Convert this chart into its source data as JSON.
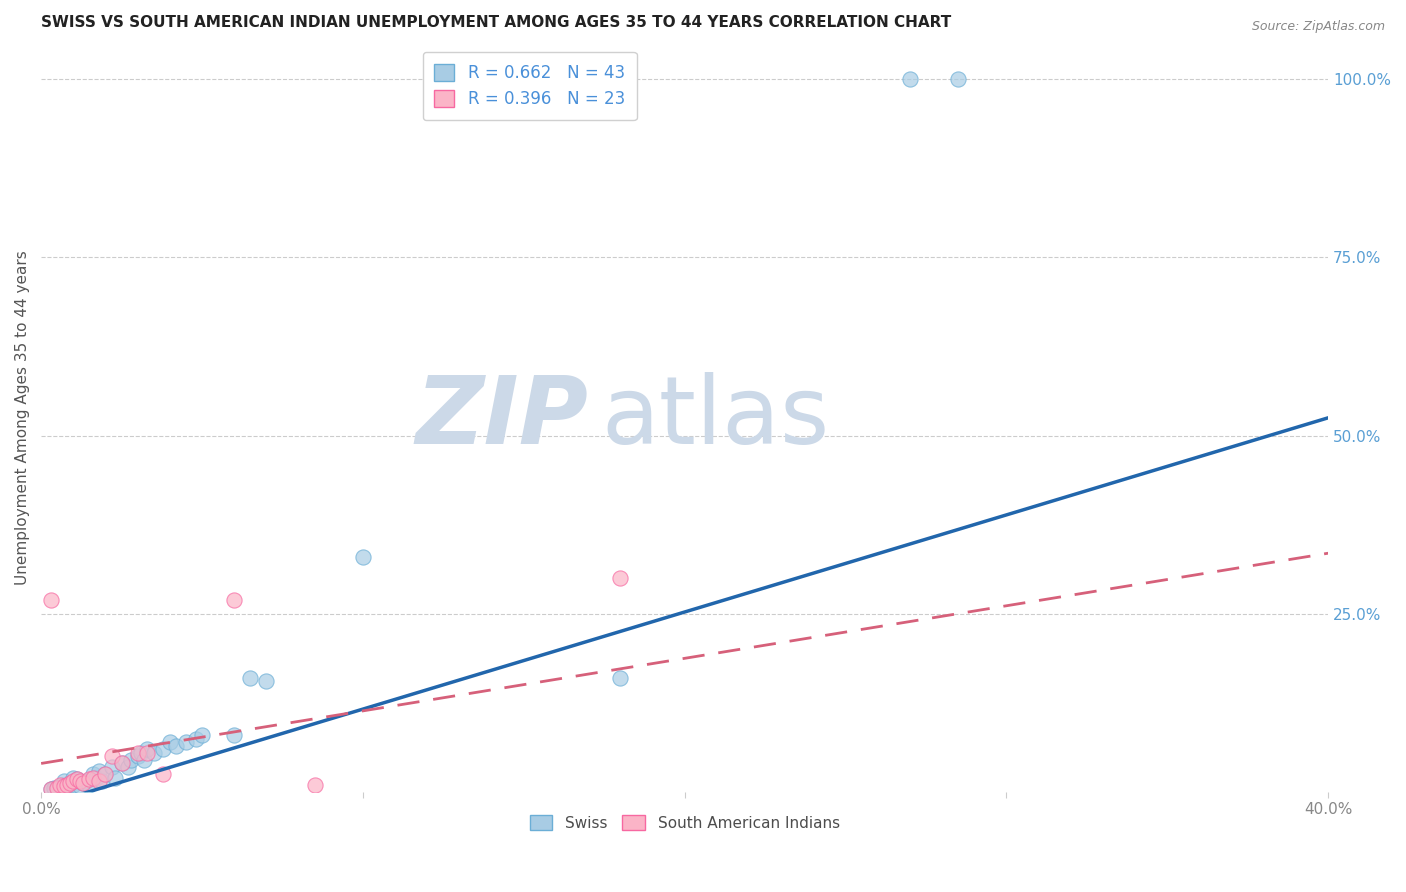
{
  "title": "SWISS VS SOUTH AMERICAN INDIAN UNEMPLOYMENT AMONG AGES 35 TO 44 YEARS CORRELATION CHART",
  "source": "Source: ZipAtlas.com",
  "ylabel": "Unemployment Among Ages 35 to 44 years",
  "xlim": [
    0.0,
    0.4
  ],
  "ylim": [
    0.0,
    1.05
  ],
  "swiss_R": 0.662,
  "swiss_N": 43,
  "sa_indian_R": 0.396,
  "sa_indian_N": 23,
  "swiss_color": "#a8cce4",
  "swiss_edge_color": "#6baed6",
  "sa_indian_color": "#fbb4c7",
  "sa_indian_edge_color": "#f768a1",
  "swiss_line_color": "#2166ac",
  "sa_indian_line_color": "#d6607a",
  "swiss_line_x": [
    0.0,
    0.4
  ],
  "swiss_line_y": [
    -0.02,
    0.525
  ],
  "sa_line_x": [
    0.0,
    0.4
  ],
  "sa_line_y": [
    0.04,
    0.335
  ],
  "watermark_zip": "ZIP",
  "watermark_atlas": "atlas",
  "watermark_color": "#ccd9e8",
  "swiss_scatter_x": [
    0.003,
    0.004,
    0.005,
    0.006,
    0.007,
    0.007,
    0.008,
    0.009,
    0.01,
    0.01,
    0.011,
    0.012,
    0.013,
    0.014,
    0.015,
    0.016,
    0.017,
    0.018,
    0.019,
    0.02,
    0.022,
    0.023,
    0.025,
    0.027,
    0.028,
    0.03,
    0.031,
    0.032,
    0.033,
    0.035,
    0.038,
    0.04,
    0.042,
    0.045,
    0.048,
    0.05,
    0.06,
    0.065,
    0.07,
    0.1,
    0.18,
    0.27,
    0.285
  ],
  "swiss_scatter_y": [
    0.004,
    0.005,
    0.006,
    0.008,
    0.01,
    0.015,
    0.007,
    0.012,
    0.01,
    0.02,
    0.018,
    0.008,
    0.012,
    0.015,
    0.01,
    0.025,
    0.02,
    0.03,
    0.015,
    0.025,
    0.035,
    0.02,
    0.04,
    0.035,
    0.045,
    0.05,
    0.055,
    0.045,
    0.06,
    0.055,
    0.06,
    0.07,
    0.065,
    0.07,
    0.075,
    0.08,
    0.08,
    0.16,
    0.155,
    0.33,
    0.16,
    1.0,
    1.0
  ],
  "sa_indian_scatter_x": [
    0.003,
    0.005,
    0.006,
    0.007,
    0.008,
    0.009,
    0.01,
    0.011,
    0.012,
    0.013,
    0.015,
    0.016,
    0.018,
    0.02,
    0.022,
    0.025,
    0.03,
    0.033,
    0.038,
    0.06,
    0.085,
    0.18,
    0.003
  ],
  "sa_indian_scatter_y": [
    0.004,
    0.006,
    0.01,
    0.008,
    0.01,
    0.012,
    0.015,
    0.018,
    0.015,
    0.012,
    0.018,
    0.02,
    0.015,
    0.025,
    0.05,
    0.04,
    0.055,
    0.055,
    0.025,
    0.27,
    0.01,
    0.3,
    0.27
  ],
  "legend_swiss_label": "R = 0.662   N = 43",
  "legend_sa_label": "R = 0.396   N = 23",
  "legend_bottom_swiss": "Swiss",
  "legend_bottom_sa": "South American Indians",
  "grid_color": "#cccccc",
  "background_color": "#ffffff",
  "title_color": "#222222",
  "axis_label_color": "#555555",
  "tick_label_color_right": "#5a9fd4",
  "source_color": "#888888",
  "legend_text_color": "#4d4d4d",
  "legend_value_color": "#4a90d9"
}
